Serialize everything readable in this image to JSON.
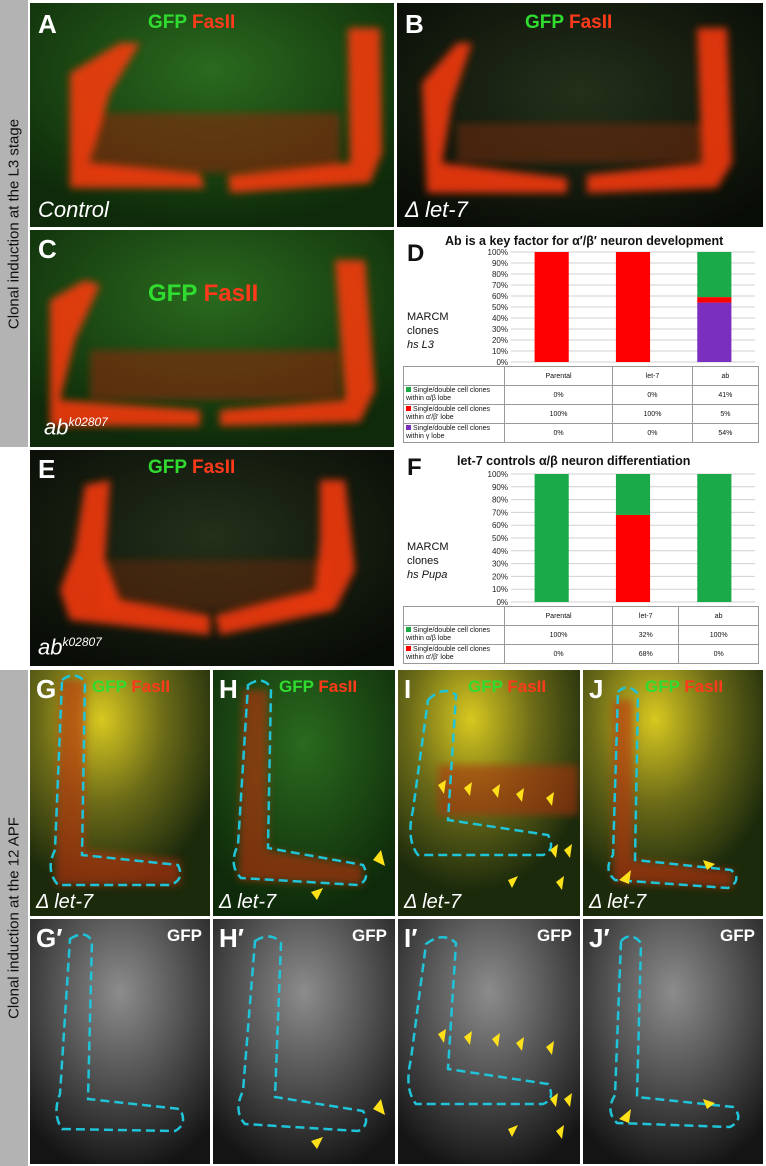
{
  "side_labels": {
    "top": "Clonal induction at the L3 stage",
    "bottom": "Clonal induction at the 12 APF"
  },
  "stain_gfp": "GFP",
  "stain_fasii": "FasII",
  "panels": {
    "A": {
      "label": "A",
      "genotype": "Control"
    },
    "B": {
      "label": "B",
      "genotype": "Δ let-7"
    },
    "C": {
      "label": "C",
      "genotype_base": "ab",
      "genotype_sup": "k02807"
    },
    "E": {
      "label": "E",
      "genotype_base": "ab",
      "genotype_sup": "k02807"
    },
    "G": {
      "label": "G",
      "genotype": "Δ let-7"
    },
    "H": {
      "label": "H",
      "genotype": "Δ let-7"
    },
    "I": {
      "label": "I",
      "genotype": "Δ let-7"
    },
    "J": {
      "label": "J",
      "genotype": "Δ let-7"
    },
    "G2": {
      "label": "G′"
    },
    "H2": {
      "label": "H′"
    },
    "I2": {
      "label": "I′"
    },
    "J2": {
      "label": "J′"
    }
  },
  "colors": {
    "alpha_beta": "#1aaa4a",
    "alpha_prime_beta_prime": "#ff0000",
    "gamma": "#7b2fbe"
  },
  "chart_data": [
    {
      "type": "bar",
      "stacked": true,
      "panel": "D",
      "title": "Ab is a key factor for α′/β′ neuron development",
      "ylabel_lines": [
        "MARCM",
        "clones",
        "hs L3"
      ],
      "categories": [
        "Parental",
        "let-7",
        "ab"
      ],
      "yticks": [
        "0%",
        "10%",
        "20%",
        "30%",
        "40%",
        "50%",
        "60%",
        "70%",
        "80%",
        "90%",
        "100%"
      ],
      "ylim": [
        0,
        100
      ],
      "grid": true,
      "series": [
        {
          "name": "Single/double cell clones within γ lobe",
          "color": "#7b2fbe",
          "values": [
            0,
            0,
            54
          ],
          "labels": [
            "0%",
            "0%",
            "54%"
          ]
        },
        {
          "name": "Single/double cell clones within α′/β′ lobe",
          "color": "#ff0000",
          "values": [
            100,
            100,
            5
          ],
          "labels": [
            "100%",
            "100%",
            "5%"
          ]
        },
        {
          "name": "Single/double cell clones within α/β lobe",
          "color": "#1aaa4a",
          "values": [
            0,
            0,
            41
          ],
          "labels": [
            "0%",
            "0%",
            "41%"
          ]
        }
      ]
    },
    {
      "type": "bar",
      "stacked": true,
      "panel": "F",
      "title": "let-7 controls α/β neuron differentiation",
      "ylabel_lines": [
        "MARCM",
        "clones",
        "hs Pupa"
      ],
      "categories": [
        "Parental",
        "let-7",
        "ab"
      ],
      "yticks": [
        "0%",
        "10%",
        "20%",
        "30%",
        "40%",
        "50%",
        "60%",
        "70%",
        "80%",
        "90%",
        "100%"
      ],
      "ylim": [
        0,
        100
      ],
      "grid": true,
      "series": [
        {
          "name": "Single/double cell clones within α′/β′ lobe",
          "color": "#ff0000",
          "values": [
            0,
            68,
            0
          ],
          "labels": [
            "0%",
            "68%",
            "0%"
          ]
        },
        {
          "name": "Single/double cell clones within α/β lobe",
          "color": "#1aaa4a",
          "values": [
            100,
            32,
            100
          ],
          "labels": [
            "100%",
            "32%",
            "100%"
          ]
        }
      ]
    }
  ]
}
